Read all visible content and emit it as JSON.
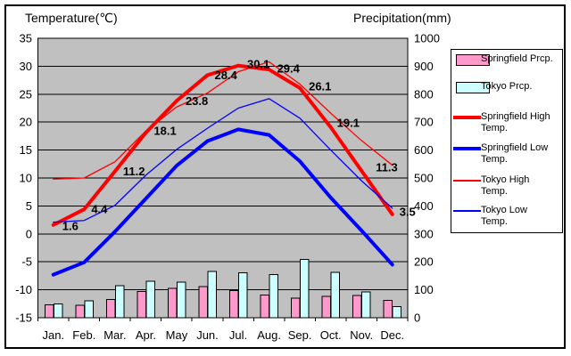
{
  "chart_data": {
    "type": "combo",
    "title_left_axis": "Temperature(℃)",
    "title_right_axis": "Precipitation(mm)",
    "categories": [
      "Jan.",
      "Feb.",
      "Mar.",
      "Apr.",
      "May",
      "Jun.",
      "Jul.",
      "Aug.",
      "Sep.",
      "Oct.",
      "Nov.",
      "Dec."
    ],
    "axes": {
      "temperature": {
        "label": "Temperature(℃)",
        "min": -15,
        "max": 35,
        "tick_step": 5,
        "side": "left"
      },
      "precipitation": {
        "label": "Precipitation(mm)",
        "min": 0,
        "max": 1000,
        "tick_step": 100,
        "side": "right"
      }
    },
    "grid": true,
    "plot_background": "#C0C0C0",
    "grid_color": "#000000",
    "series": [
      {
        "id": "springfield-prcp",
        "name": "Springfield Prcp.",
        "type": "bar",
        "axis": "precipitation",
        "color": "#FF99CC",
        "values": [
          46,
          45,
          66,
          94,
          105,
          112,
          97,
          81,
          70,
          76,
          79,
          62
        ]
      },
      {
        "id": "tokyo-prcp",
        "name": "Tokyo Prcp.",
        "type": "bar",
        "axis": "precipitation",
        "color": "#CCFFFF",
        "values": [
          49,
          60,
          114,
          130,
          128,
          165,
          161,
          155,
          208,
          163,
          92,
          40
        ]
      },
      {
        "id": "springfield-high-temp",
        "name": "Springfield High Temp.",
        "type": "line",
        "axis": "temperature",
        "color": "#FF0000",
        "thickness": "thick",
        "data_labels": true,
        "values": [
          1.6,
          4.4,
          11.2,
          18.1,
          23.8,
          28.4,
          30.1,
          29.4,
          26.1,
          19.1,
          11.3,
          3.5
        ]
      },
      {
        "id": "springfield-low-temp",
        "name": "Springfield Low Temp.",
        "type": "line",
        "axis": "temperature",
        "color": "#0000FF",
        "thickness": "thick",
        "data_labels": false,
        "values": [
          -7.3,
          -5.1,
          0.4,
          6.3,
          12.2,
          16.6,
          18.7,
          17.7,
          13.0,
          6.5,
          0.6,
          -5.5
        ]
      },
      {
        "id": "tokyo-high-temp",
        "name": "Tokyo High Temp.",
        "type": "line",
        "axis": "temperature",
        "color": "#FF0000",
        "thickness": "thin",
        "data_labels": false,
        "values": [
          9.8,
          10.0,
          12.9,
          18.4,
          22.7,
          25.2,
          29.0,
          30.8,
          26.8,
          21.6,
          16.7,
          12.3
        ]
      },
      {
        "id": "tokyo-low-temp",
        "name": "Tokyo Low Temp.",
        "type": "line",
        "axis": "temperature",
        "color": "#0000FF",
        "thickness": "thin",
        "data_labels": false,
        "values": [
          2.1,
          2.4,
          5.1,
          10.5,
          15.1,
          18.9,
          22.5,
          24.2,
          20.7,
          15.0,
          9.5,
          4.6
        ]
      }
    ],
    "legend": {
      "position": "right",
      "entries": [
        {
          "id": "springfield-prcp",
          "swatch": "bar",
          "color": "#FF99CC",
          "label_lines": [
            "Springfield Prcp."
          ]
        },
        {
          "id": "tokyo-prcp",
          "swatch": "bar",
          "color": "#CCFFFF",
          "label_lines": [
            "Tokyo Prcp."
          ]
        },
        {
          "id": "springfield-high-temp",
          "swatch": "line-thick",
          "color": "#FF0000",
          "label_lines": [
            "Springfield High",
            "Temp."
          ]
        },
        {
          "id": "springfield-low-temp",
          "swatch": "line-thick",
          "color": "#0000FF",
          "label_lines": [
            "Springfield Low",
            "Temp."
          ]
        },
        {
          "id": "tokyo-high-temp",
          "swatch": "line-thin",
          "color": "#FF0000",
          "label_lines": [
            "Tokyo High",
            "Temp."
          ]
        },
        {
          "id": "tokyo-low-temp",
          "swatch": "line-thin",
          "color": "#0000FF",
          "label_lines": [
            "Tokyo Low",
            "Temp."
          ]
        }
      ]
    }
  }
}
